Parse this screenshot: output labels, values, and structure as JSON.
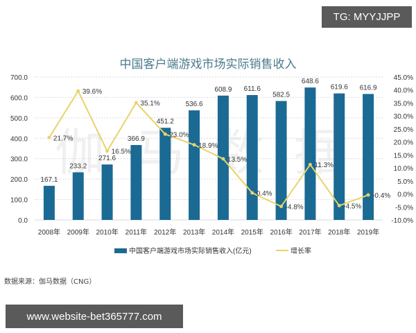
{
  "badges": {
    "tg": "TG: MYYJJPP",
    "url": "www.website-bet365777.com"
  },
  "source_note": "数据来源：伽马数据（CNG）",
  "watermark": "伽马数据",
  "colors": {
    "bar": "#1b6a94",
    "line": "#e8d36a",
    "title": "#4a7b8a",
    "grid": "#d9d9d9"
  },
  "chart_data": {
    "type": "bar",
    "title": "中国客户端游戏市场实际销售收入",
    "categories": [
      "2008年",
      "2009年",
      "2010年",
      "2011年",
      "2012年",
      "2013年",
      "2014年",
      "2015年",
      "2016年",
      "2017年",
      "2018年",
      "2019年"
    ],
    "series": [
      {
        "name": "中国客户端游戏市场实际销售收入(亿元)",
        "type": "bar",
        "axis": "left",
        "values": [
          167.1,
          233.2,
          271.6,
          366.9,
          451.2,
          536.6,
          608.9,
          611.6,
          582.5,
          648.6,
          619.6,
          616.9
        ]
      },
      {
        "name": "增长率",
        "type": "line",
        "axis": "right",
        "values": [
          21.7,
          39.6,
          16.5,
          35.1,
          23.0,
          18.9,
          13.5,
          0.4,
          -4.8,
          11.3,
          -4.5,
          -0.4
        ],
        "labels": [
          "21.7%",
          "39.6%",
          "16.5%",
          "35.1%",
          "23.0%",
          "18.9%",
          "13.5%",
          "0.4%",
          "-4.8%",
          "11.3%",
          "-4.5%",
          "-0.4%"
        ]
      }
    ],
    "y_left": {
      "ylim": [
        0,
        700
      ],
      "ticks": [
        "0.0",
        "100.0",
        "200.0",
        "300.0",
        "400.0",
        "500.0",
        "600.0",
        "700.0"
      ]
    },
    "y_right": {
      "ylim": [
        -10,
        45
      ],
      "ticks": [
        "-10.0%",
        "-5.0%",
        "0.0%",
        "5.0%",
        "10.0%",
        "15.0%",
        "20.0%",
        "25.0%",
        "30.0%",
        "35.0%",
        "40.0%",
        "45.0%"
      ]
    },
    "xlabel": "",
    "ylabel": "",
    "grid": true,
    "legend_position": "bottom"
  }
}
